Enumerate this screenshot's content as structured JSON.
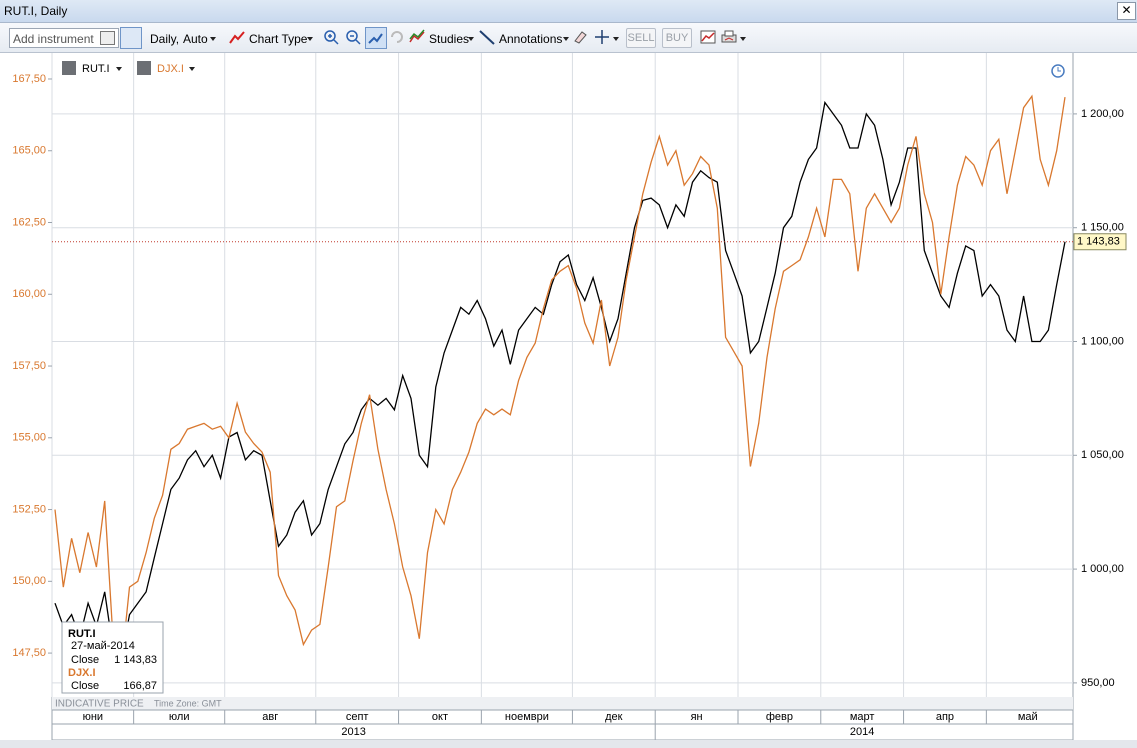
{
  "window": {
    "title": "RUT.I, Daily"
  },
  "toolbar": {
    "add_instrument": "Add instrument",
    "period": "Daily,",
    "scale": "Auto",
    "chart_type": "Chart Type",
    "studies": "Studies",
    "annotations": "Annotations",
    "sell": "SELL",
    "buy": "BUY"
  },
  "tooltip": {
    "date": "27-май-2014",
    "field": "Close"
  },
  "footer": {
    "price_type": "INDICATIVE PRICE",
    "time_zone": "Time Zone: GMT"
  },
  "chart_data": {
    "type": "line",
    "categories": [
      "юни",
      null,
      null,
      null,
      null,
      null,
      null,
      null,
      null,
      null,
      "юли",
      null,
      null,
      null,
      null,
      null,
      null,
      null,
      null,
      null,
      null,
      "авг",
      null,
      null,
      null,
      null,
      null,
      null,
      null,
      null,
      null,
      null,
      "септ",
      null,
      null,
      null,
      null,
      null,
      null,
      null,
      null,
      null,
      "окт",
      null,
      null,
      null,
      null,
      null,
      null,
      null,
      null,
      null,
      "ноември",
      null,
      null,
      null,
      null,
      null,
      null,
      null,
      null,
      null,
      null,
      "дек",
      null,
      null,
      null,
      null,
      null,
      null,
      null,
      null,
      null,
      "ян",
      null,
      null,
      null,
      null,
      null,
      null,
      null,
      null,
      null,
      "февр",
      null,
      null,
      null,
      null,
      null,
      null,
      null,
      null,
      null,
      "март",
      null,
      null,
      null,
      null,
      null,
      null,
      null,
      null,
      null,
      "апр",
      null,
      null,
      null,
      null,
      null,
      null,
      null,
      null,
      null,
      "май",
      null,
      null,
      null,
      null,
      null,
      null,
      null,
      null,
      null
    ],
    "years": [
      "2013",
      null,
      null,
      null,
      null,
      null,
      null,
      null,
      null,
      null,
      null,
      null,
      null,
      null,
      null,
      null,
      null,
      null,
      null,
      null,
      null,
      null,
      null,
      null,
      null,
      null,
      null,
      null,
      null,
      null,
      null,
      null,
      null,
      null,
      null,
      null,
      null,
      null,
      null,
      null,
      null,
      null,
      null,
      null,
      null,
      null,
      null,
      null,
      null,
      null,
      null,
      null,
      null,
      null,
      null,
      null,
      null,
      null,
      null,
      null,
      null,
      null,
      null,
      null,
      null,
      null,
      null,
      null,
      null,
      null,
      null,
      null,
      null,
      "2014",
      null,
      null,
      null,
      null,
      null,
      null,
      null,
      null,
      null,
      null,
      null,
      null,
      null,
      null,
      null,
      null,
      null,
      null,
      null,
      null,
      null,
      null,
      null,
      null,
      null,
      null,
      null,
      null,
      null,
      null,
      null,
      null,
      null,
      null,
      null,
      null,
      null,
      null,
      null,
      null,
      null,
      null,
      null,
      null,
      null,
      null,
      null,
      null,
      null
    ],
    "series": [
      {
        "name": "RUT.I",
        "color": "#000000",
        "axis": "y2",
        "values": [
          985,
          975,
          980,
          970,
          985,
          975,
          990,
          965,
          960,
          980,
          985,
          990,
          1005,
          1020,
          1035,
          1040,
          1048,
          1052,
          1045,
          1050,
          1040,
          1058,
          1060,
          1048,
          1052,
          1050,
          1030,
          1010,
          1015,
          1025,
          1030,
          1015,
          1020,
          1035,
          1045,
          1055,
          1060,
          1070,
          1075,
          1072,
          1075,
          1070,
          1085,
          1075,
          1050,
          1045,
          1080,
          1095,
          1105,
          1115,
          1112,
          1118,
          1110,
          1098,
          1105,
          1090,
          1105,
          1110,
          1115,
          1112,
          1125,
          1135,
          1138,
          1125,
          1118,
          1128,
          1115,
          1100,
          1110,
          1130,
          1150,
          1162,
          1163,
          1160,
          1150,
          1160,
          1155,
          1170,
          1175,
          1172,
          1170,
          1140,
          1130,
          1120,
          1095,
          1100,
          1115,
          1130,
          1150,
          1155,
          1170,
          1180,
          1185,
          1205,
          1200,
          1195,
          1185,
          1185,
          1200,
          1195,
          1180,
          1160,
          1170,
          1185,
          1185,
          1140,
          1130,
          1120,
          1115,
          1130,
          1142,
          1140,
          1120,
          1125,
          1120,
          1105,
          1100,
          1120,
          1100,
          1100,
          1105,
          1125,
          1143.83
        ],
        "value_labels": [
          null,
          null,
          null,
          null,
          null,
          null,
          null,
          null,
          null,
          null,
          null,
          null,
          null,
          null,
          null,
          null,
          null,
          null,
          null,
          null,
          null,
          null,
          null,
          null,
          null,
          null,
          null,
          null,
          null,
          null,
          null,
          null,
          null,
          null,
          null,
          null,
          null,
          null,
          null,
          null,
          null,
          null,
          null,
          null,
          null,
          null,
          null,
          null,
          null,
          null,
          null,
          null,
          null,
          null,
          null,
          null,
          null,
          null,
          null,
          null,
          null,
          null,
          null,
          null,
          null,
          null,
          null,
          null,
          null,
          null,
          null,
          null,
          null,
          null,
          null,
          null,
          null,
          null,
          null,
          null,
          null,
          null,
          null,
          null,
          null,
          null,
          null,
          null,
          null,
          null,
          null,
          null,
          null,
          null,
          null,
          null,
          null,
          null,
          null,
          null,
          null,
          null,
          null,
          null,
          null,
          null,
          null,
          null,
          null,
          null,
          null,
          null,
          null,
          null,
          null,
          null,
          null,
          null,
          null,
          null,
          null,
          null,
          "1 143,83"
        ]
      },
      {
        "name": "DJX.I",
        "color": "#d9782f",
        "values": [
          152.5,
          149.8,
          151.5,
          150.3,
          151.7,
          150.5,
          152.8,
          148.0,
          147.0,
          149.8,
          150.0,
          151.0,
          152.2,
          153.0,
          154.6,
          154.8,
          155.3,
          155.4,
          155.5,
          155.3,
          155.4,
          155.0,
          156.2,
          155.2,
          154.8,
          154.5,
          153.8,
          150.2,
          149.5,
          149.0,
          147.8,
          148.3,
          148.5,
          150.5,
          152.6,
          152.8,
          154.2,
          155.5,
          156.5,
          154.6,
          153.2,
          152.0,
          150.5,
          149.5,
          148.0,
          151.0,
          152.5,
          152.0,
          153.2,
          153.8,
          154.5,
          155.5,
          156.0,
          155.8,
          156.0,
          155.8,
          157.0,
          157.8,
          158.3,
          159.5,
          160.5,
          160.8,
          161.0,
          160.2,
          159.0,
          158.3,
          159.8,
          157.5,
          158.5,
          160.5,
          162.0,
          163.5,
          164.6,
          165.5,
          164.5,
          165.0,
          163.8,
          164.2,
          164.8,
          164.5,
          163.0,
          158.5,
          158.0,
          157.5,
          154.0,
          155.5,
          157.8,
          159.5,
          160.8,
          161.0,
          161.2,
          162.0,
          163.0,
          162.0,
          164.0,
          164.0,
          163.5,
          160.8,
          163.0,
          163.5,
          163.0,
          162.5,
          163.0,
          164.5,
          165.5,
          163.5,
          162.5,
          160.0,
          162.0,
          163.8,
          164.8,
          164.5,
          163.8,
          165.0,
          165.4,
          163.5,
          165.0,
          166.5,
          166.9,
          164.7,
          163.8,
          165.0,
          166.87
        ],
        "value_labels": [
          null,
          null,
          null,
          null,
          null,
          null,
          null,
          null,
          null,
          null,
          null,
          null,
          null,
          null,
          null,
          null,
          null,
          null,
          null,
          null,
          null,
          null,
          null,
          null,
          null,
          null,
          null,
          null,
          null,
          null,
          null,
          null,
          null,
          null,
          null,
          null,
          null,
          null,
          null,
          null,
          null,
          null,
          null,
          null,
          null,
          null,
          null,
          null,
          null,
          null,
          null,
          null,
          null,
          null,
          null,
          null,
          null,
          null,
          null,
          null,
          null,
          null,
          null,
          null,
          null,
          null,
          null,
          null,
          null,
          null,
          null,
          null,
          null,
          null,
          null,
          null,
          null,
          null,
          null,
          null,
          null,
          null,
          null,
          null,
          null,
          null,
          null,
          null,
          null,
          null,
          null,
          null,
          null,
          null,
          null,
          null,
          null,
          null,
          null,
          null,
          null,
          null,
          null,
          null,
          null,
          null,
          null,
          null,
          null,
          null,
          null,
          null,
          null,
          null,
          null,
          null,
          null,
          null,
          null,
          null,
          null,
          null,
          "166,87"
        ]
      }
    ],
    "ylim": [
      145.97,
      168.44
    ],
    "yticks": [
      {
        "value": 147.5,
        "label": "147,50"
      },
      {
        "value": 150,
        "label": "150,00"
      },
      {
        "value": 152.5,
        "label": "152,50"
      },
      {
        "value": 155,
        "label": "155,00"
      },
      {
        "value": 157.5,
        "label": "157,50"
      },
      {
        "value": 160,
        "label": "160,00"
      },
      {
        "value": 162.5,
        "label": "162,50"
      },
      {
        "value": 165,
        "label": "165,00"
      },
      {
        "value": 167.5,
        "label": "167,50"
      }
    ],
    "y2lim": [
      943.8,
      1227.2
    ],
    "y2ticks": [
      {
        "value": 950,
        "label": "950,00"
      },
      {
        "value": 1000,
        "label": "1 000,00"
      },
      {
        "value": 1050,
        "label": "1 050,00"
      },
      {
        "value": 1100,
        "label": "1 100,00"
      },
      {
        "value": 1150,
        "label": "1 150,00"
      },
      {
        "value": 1200,
        "label": "1 200,00"
      }
    ],
    "yaxis_color": "#d9782f",
    "grid": "y2"
  }
}
